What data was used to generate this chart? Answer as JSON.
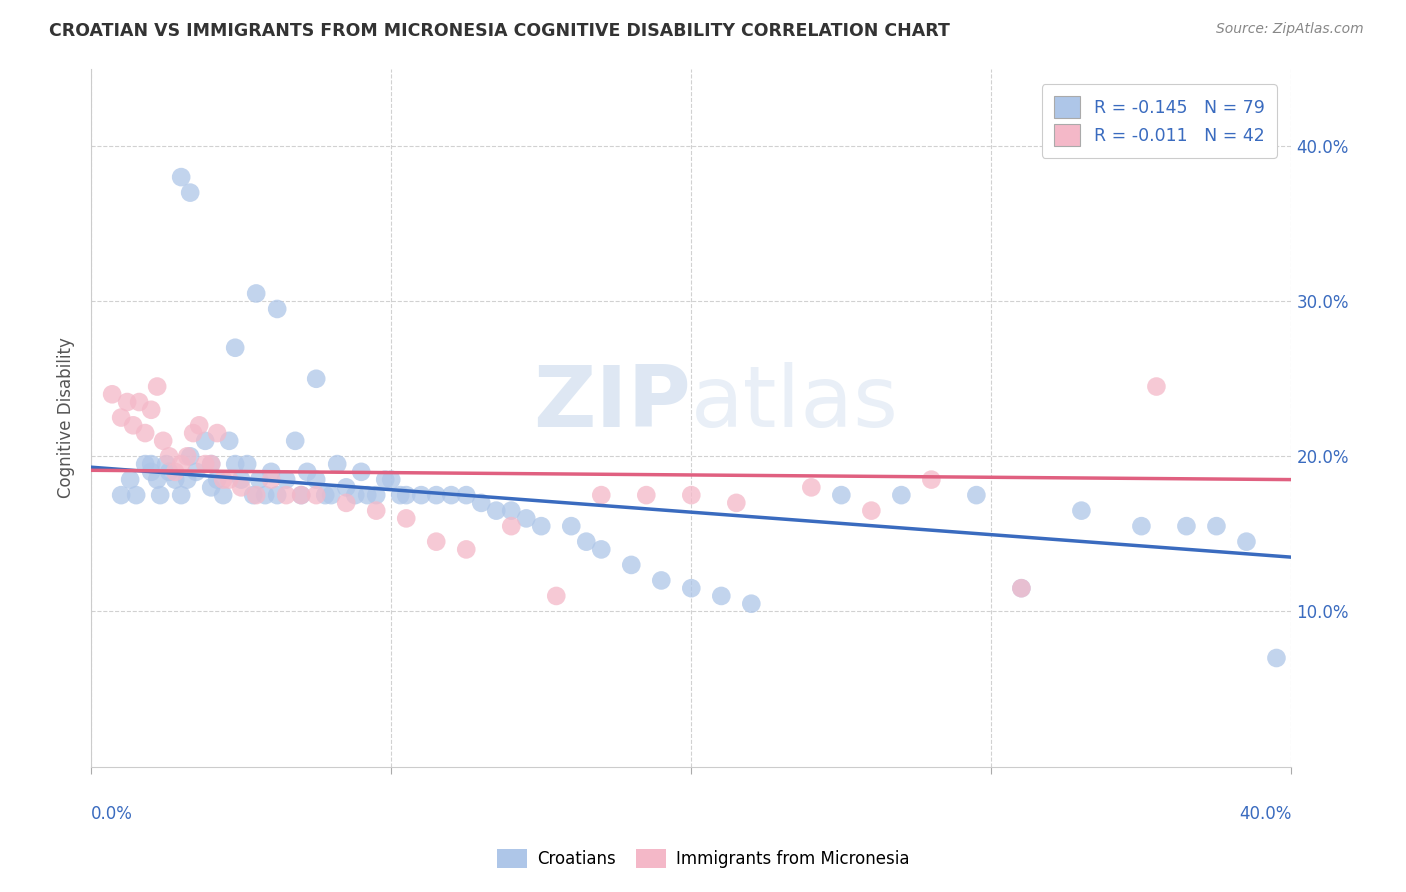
{
  "title": "CROATIAN VS IMMIGRANTS FROM MICRONESIA COGNITIVE DISABILITY CORRELATION CHART",
  "source": "Source: ZipAtlas.com",
  "ylabel": "Cognitive Disability",
  "xlim": [
    0.0,
    0.4
  ],
  "ylim": [
    0.0,
    0.45
  ],
  "yticks": [
    0.1,
    0.2,
    0.3,
    0.4
  ],
  "ytick_labels": [
    "10.0%",
    "20.0%",
    "30.0%",
    "40.0%"
  ],
  "legend_labels": [
    "Croatians",
    "Immigrants from Micronesia"
  ],
  "blue_color": "#aec6e8",
  "pink_color": "#f4b8c8",
  "blue_line_color": "#3a6bbf",
  "pink_line_color": "#e06080",
  "blue_N": 79,
  "pink_N": 42,
  "blue_R": -0.145,
  "pink_R": -0.011,
  "blue_scatter_x": [
    0.03,
    0.033,
    0.055,
    0.062,
    0.048,
    0.075,
    0.01,
    0.013,
    0.015,
    0.018,
    0.02,
    0.02,
    0.022,
    0.023,
    0.025,
    0.026,
    0.028,
    0.03,
    0.032,
    0.033,
    0.035,
    0.038,
    0.04,
    0.04,
    0.042,
    0.044,
    0.046,
    0.048,
    0.05,
    0.052,
    0.054,
    0.056,
    0.058,
    0.06,
    0.062,
    0.065,
    0.068,
    0.07,
    0.072,
    0.075,
    0.078,
    0.08,
    0.082,
    0.085,
    0.088,
    0.09,
    0.092,
    0.095,
    0.098,
    0.1,
    0.103,
    0.105,
    0.11,
    0.115,
    0.12,
    0.125,
    0.13,
    0.135,
    0.14,
    0.145,
    0.15,
    0.16,
    0.165,
    0.17,
    0.18,
    0.19,
    0.2,
    0.21,
    0.22,
    0.25,
    0.27,
    0.295,
    0.31,
    0.33,
    0.35,
    0.365,
    0.375,
    0.385,
    0.395
  ],
  "blue_scatter_y": [
    0.38,
    0.37,
    0.305,
    0.295,
    0.27,
    0.25,
    0.175,
    0.185,
    0.175,
    0.195,
    0.19,
    0.195,
    0.185,
    0.175,
    0.195,
    0.19,
    0.185,
    0.175,
    0.185,
    0.2,
    0.19,
    0.21,
    0.18,
    0.195,
    0.185,
    0.175,
    0.21,
    0.195,
    0.185,
    0.195,
    0.175,
    0.185,
    0.175,
    0.19,
    0.175,
    0.185,
    0.21,
    0.175,
    0.19,
    0.185,
    0.175,
    0.175,
    0.195,
    0.18,
    0.175,
    0.19,
    0.175,
    0.175,
    0.185,
    0.185,
    0.175,
    0.175,
    0.175,
    0.175,
    0.175,
    0.175,
    0.17,
    0.165,
    0.165,
    0.16,
    0.155,
    0.155,
    0.145,
    0.14,
    0.13,
    0.12,
    0.115,
    0.11,
    0.105,
    0.175,
    0.175,
    0.175,
    0.115,
    0.165,
    0.155,
    0.155,
    0.155,
    0.145,
    0.07
  ],
  "pink_scatter_x": [
    0.007,
    0.01,
    0.012,
    0.014,
    0.016,
    0.018,
    0.02,
    0.022,
    0.024,
    0.026,
    0.028,
    0.03,
    0.032,
    0.034,
    0.036,
    0.038,
    0.04,
    0.042,
    0.044,
    0.046,
    0.05,
    0.055,
    0.06,
    0.065,
    0.07,
    0.075,
    0.085,
    0.095,
    0.105,
    0.115,
    0.125,
    0.14,
    0.155,
    0.17,
    0.185,
    0.2,
    0.215,
    0.24,
    0.26,
    0.28,
    0.31,
    0.355
  ],
  "pink_scatter_y": [
    0.24,
    0.225,
    0.235,
    0.22,
    0.235,
    0.215,
    0.23,
    0.245,
    0.21,
    0.2,
    0.19,
    0.195,
    0.2,
    0.215,
    0.22,
    0.195,
    0.195,
    0.215,
    0.185,
    0.185,
    0.18,
    0.175,
    0.185,
    0.175,
    0.175,
    0.175,
    0.17,
    0.165,
    0.16,
    0.145,
    0.14,
    0.155,
    0.11,
    0.175,
    0.175,
    0.175,
    0.17,
    0.18,
    0.165,
    0.185,
    0.115,
    0.245
  ]
}
